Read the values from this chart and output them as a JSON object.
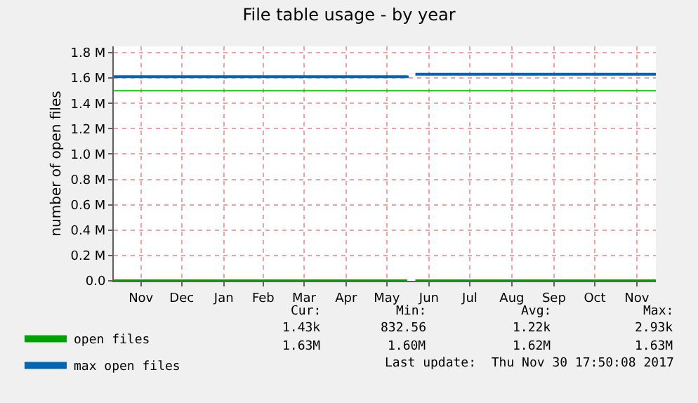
{
  "chart_data": {
    "type": "line",
    "title": "File table usage - by year",
    "ylabel": "number of open files",
    "series": [
      {
        "name": "open files",
        "color": "#00a000",
        "x": [
          "2016-10-27",
          "2017-05-31",
          "2017-06-01",
          "2017-06-06",
          "2017-11-30"
        ],
        "values": [
          0,
          0,
          null,
          0,
          0
        ]
      },
      {
        "name": "max open files",
        "color": "#0066b3",
        "x": [
          "2016-10-27",
          "2017-05-30",
          "2017-05-31",
          "2017-06-01",
          "2017-06-06",
          "2017-11-30"
        ],
        "values": [
          1.61,
          1.61,
          1.62,
          null,
          1.63,
          1.63
        ]
      }
    ],
    "xlim": [
      "2016-10-27",
      "2017-11-30"
    ],
    "xticks": [
      {
        "value": "2016-11-16",
        "label": "Nov"
      },
      {
        "value": "2016-12-16",
        "label": "Dec"
      },
      {
        "value": "2017-01-16",
        "label": "Jan"
      },
      {
        "value": "2017-02-14",
        "label": "Feb"
      },
      {
        "value": "2017-03-16",
        "label": "Mar"
      },
      {
        "value": "2017-04-16",
        "label": "Apr"
      },
      {
        "value": "2017-05-16",
        "label": "May"
      },
      {
        "value": "2017-06-16",
        "label": "Jun"
      },
      {
        "value": "2017-07-16",
        "label": "Jul"
      },
      {
        "value": "2017-08-16",
        "label": "Aug"
      },
      {
        "value": "2017-09-16",
        "label": "Sep"
      },
      {
        "value": "2017-10-16",
        "label": "Oct"
      },
      {
        "value": "2017-11-16",
        "label": "Nov"
      }
    ],
    "ylim": [
      0,
      1.85
    ],
    "yticks": [
      {
        "value": 0,
        "label": "0.0"
      },
      {
        "value": 0.2,
        "label": "0.2 M"
      },
      {
        "value": 0.4,
        "label": "0.4 M"
      },
      {
        "value": 0.6,
        "label": "0.6 M"
      },
      {
        "value": 0.8,
        "label": "0.8 M"
      },
      {
        "value": 1.0,
        "label": "1.0 M"
      },
      {
        "value": 1.2,
        "label": "1.2 M"
      },
      {
        "value": 1.4,
        "label": "1.4 M"
      },
      {
        "value": 1.6,
        "label": "1.6 M"
      },
      {
        "value": 1.8,
        "label": "1.8 M"
      }
    ],
    "ref_lines": [
      {
        "axis": "y",
        "value": 1.5,
        "color": "#00cc00"
      }
    ],
    "grid": true,
    "legend": "bottom left",
    "marker": "none",
    "line_style": "solid",
    "annotations": [
      "Cur:",
      "Min:",
      "Avg:",
      "Max:",
      "1.43k",
      "832.56",
      "1.22k",
      "2.93k",
      "1.63M",
      "1.60M",
      "1.62M",
      "1.63M",
      "Last update:  Thu Nov 30 17:50:08 2017"
    ]
  }
}
